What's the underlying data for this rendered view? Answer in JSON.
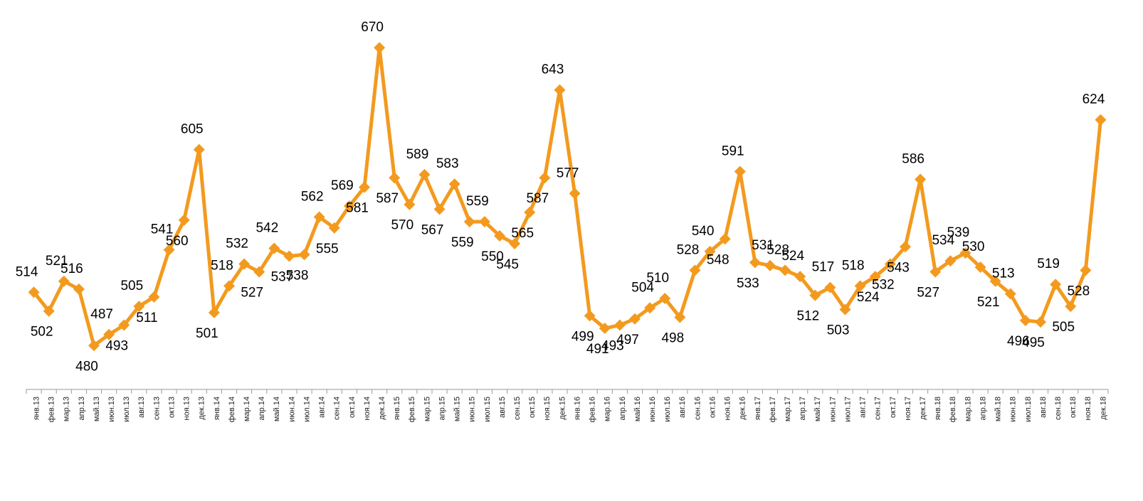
{
  "chart_data": {
    "type": "line",
    "categories": [
      "янв.13",
      "фев.13",
      "мар.13",
      "апр.13",
      "май.13",
      "июн.13",
      "июл.13",
      "авг.13",
      "сен.13",
      "окт.13",
      "ноя.13",
      "дек.13",
      "янв.14",
      "фев.14",
      "мар.14",
      "апр.14",
      "май.14",
      "июн.14",
      "июл.14",
      "авг.14",
      "сен.14",
      "окт.14",
      "ноя.14",
      "дек.14",
      "янв.15",
      "фев.15",
      "мар.15",
      "апр.15",
      "май.15",
      "июн.15",
      "июл.15",
      "авг.15",
      "сен.15",
      "окт.15",
      "ноя.15",
      "дек.15",
      "янв.16",
      "фев.16",
      "мар.16",
      "апр.16",
      "май.16",
      "июн.16",
      "июл.16",
      "авг.16",
      "сен.16",
      "окт.16",
      "ноя.16",
      "дек.16",
      "янв.17",
      "фев.17",
      "мар.17",
      "апр.17",
      "май.17",
      "июн.17",
      "июл.17",
      "авг.17",
      "сен.17",
      "окт.17",
      "ноя.17",
      "дек.17",
      "янв.18",
      "фев.18",
      "мар.18",
      "апр.18",
      "май.18",
      "июн.18",
      "июл.18",
      "авг.18",
      "сен.18",
      "окт.18",
      "ноя.18",
      "дек.18"
    ],
    "series": [
      {
        "color": "#f39a1e",
        "values": [
          514,
          502,
          521,
          516,
          480,
          487,
          493,
          505,
          511,
          541,
          560,
          605,
          501,
          518,
          532,
          527,
          542,
          537,
          538,
          562,
          555,
          569,
          581,
          670,
          587,
          570,
          589,
          567,
          583,
          559,
          559,
          550,
          545,
          565,
          587,
          643,
          577,
          499,
          491,
          493,
          497,
          504,
          510,
          498,
          528,
          540,
          548,
          591,
          533,
          531,
          528,
          524,
          512,
          517,
          503,
          518,
          524,
          532,
          543,
          586,
          527,
          534,
          539,
          530,
          521,
          513,
          496,
          495,
          519,
          505,
          528,
          624
        ]
      }
    ],
    "ylim": [
      452,
      690
    ]
  }
}
